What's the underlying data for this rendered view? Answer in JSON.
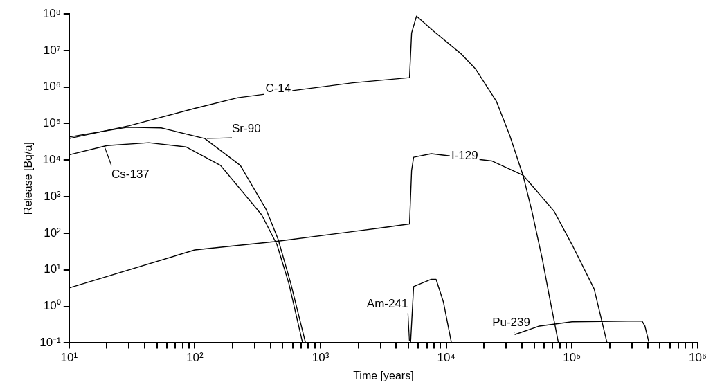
{
  "chart_data": {
    "type": "line",
    "xlabel": "Time [years]",
    "ylabel": "Release [Bq/a]",
    "log": "xy",
    "grid": false,
    "legend": false,
    "marker": "none",
    "line_style": "solid",
    "xlim": [
      10,
      1000000
    ],
    "ylim": [
      0.1,
      100000000
    ],
    "xticks": [
      {
        "value": 10,
        "label": "10¹"
      },
      {
        "value": 20,
        "label": null
      },
      {
        "value": 30,
        "label": null
      },
      {
        "value": 40,
        "label": null
      },
      {
        "value": 50,
        "label": null
      },
      {
        "value": 60,
        "label": null
      },
      {
        "value": 70,
        "label": null
      },
      {
        "value": 80,
        "label": null
      },
      {
        "value": 90,
        "label": null
      },
      {
        "value": 100,
        "label": "10²"
      },
      {
        "value": 200,
        "label": null
      },
      {
        "value": 300,
        "label": null
      },
      {
        "value": 400,
        "label": null
      },
      {
        "value": 500,
        "label": null
      },
      {
        "value": 600,
        "label": null
      },
      {
        "value": 700,
        "label": null
      },
      {
        "value": 800,
        "label": null
      },
      {
        "value": 900,
        "label": null
      },
      {
        "value": 1000,
        "label": "10³"
      },
      {
        "value": 2000,
        "label": null
      },
      {
        "value": 3000,
        "label": null
      },
      {
        "value": 4000,
        "label": null
      },
      {
        "value": 5000,
        "label": null
      },
      {
        "value": 6000,
        "label": null
      },
      {
        "value": 7000,
        "label": null
      },
      {
        "value": 8000,
        "label": null
      },
      {
        "value": 9000,
        "label": null
      },
      {
        "value": 10000,
        "label": "10⁴"
      },
      {
        "value": 20000,
        "label": null
      },
      {
        "value": 30000,
        "label": null
      },
      {
        "value": 40000,
        "label": null
      },
      {
        "value": 50000,
        "label": null
      },
      {
        "value": 60000,
        "label": null
      },
      {
        "value": 70000,
        "label": null
      },
      {
        "value": 80000,
        "label": null
      },
      {
        "value": 90000,
        "label": null
      },
      {
        "value": 100000,
        "label": "10⁵"
      },
      {
        "value": 200000,
        "label": null
      },
      {
        "value": 300000,
        "label": null
      },
      {
        "value": 400000,
        "label": null
      },
      {
        "value": 500000,
        "label": null
      },
      {
        "value": 600000,
        "label": null
      },
      {
        "value": 700000,
        "label": null
      },
      {
        "value": 800000,
        "label": null
      },
      {
        "value": 900000,
        "label": null
      },
      {
        "value": 1000000,
        "label": "10⁶"
      }
    ],
    "yticks": [
      {
        "value": 0.1,
        "label": "10⁻¹"
      },
      {
        "value": 1,
        "label": "10⁰"
      },
      {
        "value": 10,
        "label": "10¹"
      },
      {
        "value": 100,
        "label": "10²"
      },
      {
        "value": 1000,
        "label": "10³"
      },
      {
        "value": 10000,
        "label": "10⁴"
      },
      {
        "value": 100000,
        "label": "10⁵"
      },
      {
        "value": 1000000,
        "label": "10⁶"
      },
      {
        "value": 10000000,
        "label": "10⁷"
      },
      {
        "value": 100000000,
        "label": "10⁸"
      }
    ],
    "series": [
      {
        "color": "#000000",
        "x": [
          10,
          30,
          100,
          220,
          1800,
          5100,
          5300,
          5800,
          7900,
          13000,
          17000,
          25000,
          32000,
          41000,
          48000,
          58000,
          66000,
          78000
        ],
        "values": [
          39000,
          87000,
          260000,
          510000,
          1300000,
          1800000,
          30000000,
          87000000,
          34000000,
          8300000,
          3200000,
          410000,
          47000,
          3600,
          400,
          20,
          1.9,
          0.1
        ]
      },
      {
        "color": "#000000",
        "x": [
          10,
          29,
          54,
          120,
          230,
          370,
          460,
          580,
          760
        ],
        "values": [
          43000,
          79000,
          76000,
          39000,
          7200,
          440,
          68,
          4.2,
          0.1
        ]
      },
      {
        "color": "#000000",
        "x": [
          10,
          20,
          43,
          85,
          160,
          340,
          450,
          560,
          720
        ],
        "values": [
          14000,
          25000,
          30000,
          23000,
          7200,
          320,
          49,
          4.2,
          0.1
        ]
      },
      {
        "color": "#000000",
        "x": [
          10,
          100,
          430,
          3000,
          5100,
          5300,
          5500,
          7600,
          23000,
          41000,
          72000,
          100000,
          150000,
          190000
        ],
        "values": [
          3.2,
          35,
          59,
          140,
          180,
          5200,
          12000,
          15000,
          9500,
          3800,
          400,
          49,
          3,
          0.1
        ]
      },
      {
        "color": "#000000",
        "x": [
          5200,
          5500,
          7600,
          8300,
          9500,
          11000
        ],
        "values": [
          0.1,
          3.5,
          5.5,
          5.5,
          1.3,
          0.1
        ]
      },
      {
        "color": "#000000",
        "x": [
          35000,
          55000,
          100000,
          360000,
          380000,
          410000
        ],
        "values": [
          0.17,
          0.29,
          0.38,
          0.4,
          0.29,
          0.1
        ]
      }
    ],
    "annotations": [
      {
        "text": "C-14",
        "x": 460,
        "y": 890000
      },
      {
        "text": "Sr-90",
        "x": 120,
        "y": 39000
      },
      {
        "text": "Cs-137",
        "x": 19,
        "y": 25000
      },
      {
        "text": "I-129",
        "x": 14000,
        "y": 13000
      },
      {
        "text": "Am-241",
        "x": 5100,
        "y": 0.1
      },
      {
        "text": "Pu-239",
        "x": 35000,
        "y": 0.17
      }
    ]
  }
}
